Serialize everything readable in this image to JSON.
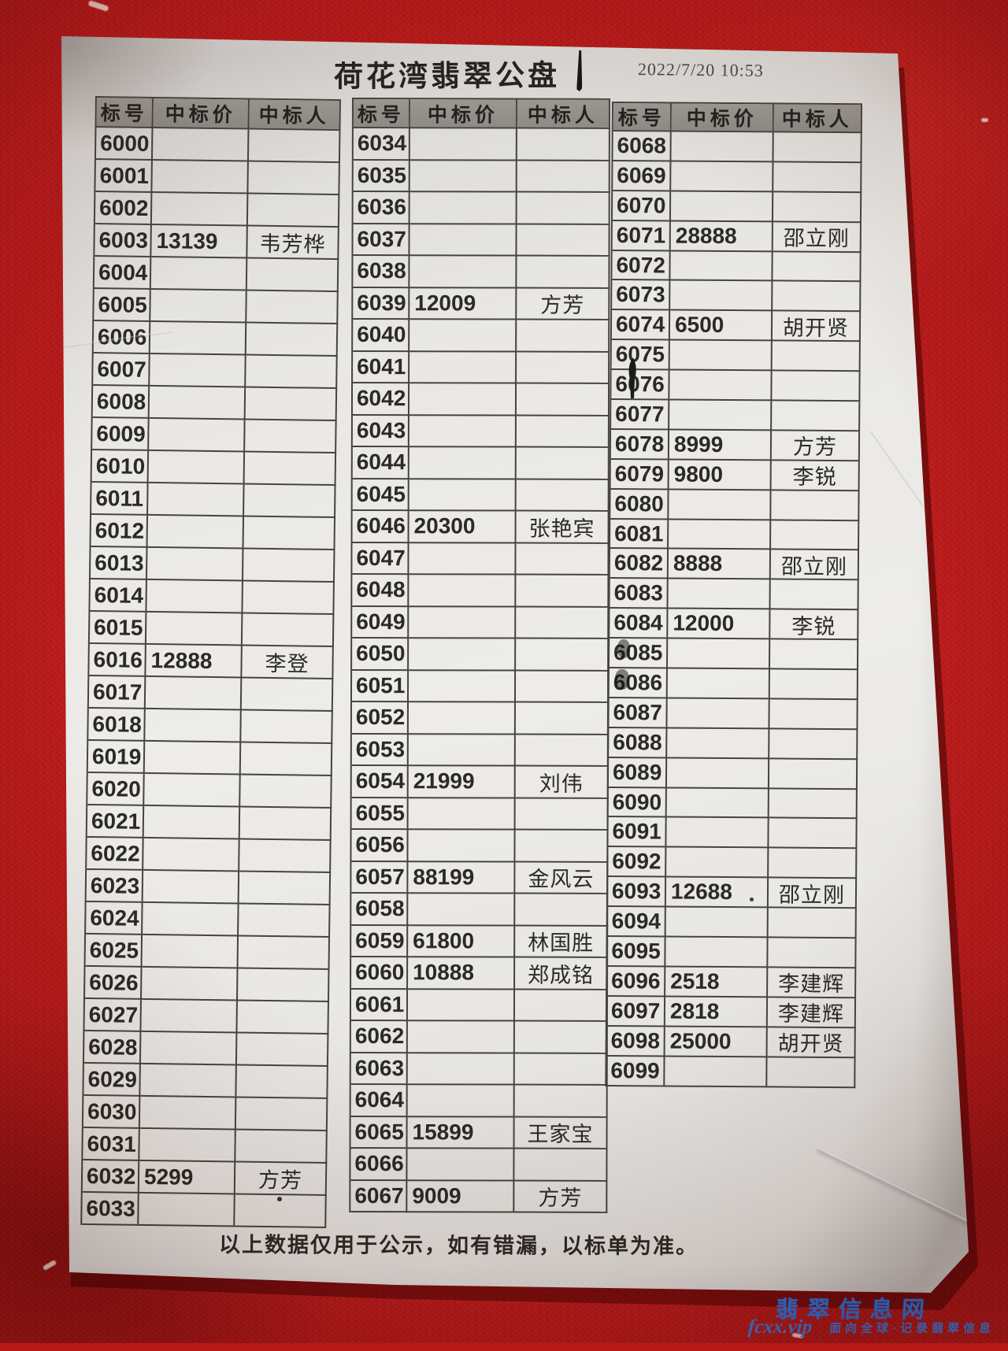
{
  "page": {
    "title": "荷花湾翡翠公盘",
    "datetime": "2022/7/20 10:53",
    "footer_note": "以上数据仅用于公示，如有错漏，以标单为准。"
  },
  "watermark": {
    "site_name": "翡翠信息网",
    "site_url": "fcxx.vip",
    "tagline": "面向全球·记录翡翠信息"
  },
  "table_headers": [
    "标号",
    "中标价",
    "中标人"
  ],
  "tables": [
    {
      "name": "lots-6000-6033",
      "rows": [
        [
          "6000",
          "",
          ""
        ],
        [
          "6001",
          "",
          ""
        ],
        [
          "6002",
          "",
          ""
        ],
        [
          "6003",
          "13139",
          "韦芳桦"
        ],
        [
          "6004",
          "",
          ""
        ],
        [
          "6005",
          "",
          ""
        ],
        [
          "6006",
          "",
          ""
        ],
        [
          "6007",
          "",
          ""
        ],
        [
          "6008",
          "",
          ""
        ],
        [
          "6009",
          "",
          ""
        ],
        [
          "6010",
          "",
          ""
        ],
        [
          "6011",
          "",
          ""
        ],
        [
          "6012",
          "",
          ""
        ],
        [
          "6013",
          "",
          ""
        ],
        [
          "6014",
          "",
          ""
        ],
        [
          "6015",
          "",
          ""
        ],
        [
          "6016",
          "12888",
          "李登"
        ],
        [
          "6017",
          "",
          ""
        ],
        [
          "6018",
          "",
          ""
        ],
        [
          "6019",
          "",
          ""
        ],
        [
          "6020",
          "",
          ""
        ],
        [
          "6021",
          "",
          ""
        ],
        [
          "6022",
          "",
          ""
        ],
        [
          "6023",
          "",
          ""
        ],
        [
          "6024",
          "",
          ""
        ],
        [
          "6025",
          "",
          ""
        ],
        [
          "6026",
          "",
          ""
        ],
        [
          "6027",
          "",
          ""
        ],
        [
          "6028",
          "",
          ""
        ],
        [
          "6029",
          "",
          ""
        ],
        [
          "6030",
          "",
          ""
        ],
        [
          "6031",
          "",
          ""
        ],
        [
          "6032",
          "5299",
          "方芳"
        ],
        [
          "6033",
          "",
          ""
        ]
      ]
    },
    {
      "name": "lots-6034-6067",
      "rows": [
        [
          "6034",
          "",
          ""
        ],
        [
          "6035",
          "",
          ""
        ],
        [
          "6036",
          "",
          ""
        ],
        [
          "6037",
          "",
          ""
        ],
        [
          "6038",
          "",
          ""
        ],
        [
          "6039",
          "12009",
          "方芳"
        ],
        [
          "6040",
          "",
          ""
        ],
        [
          "6041",
          "",
          ""
        ],
        [
          "6042",
          "",
          ""
        ],
        [
          "6043",
          "",
          ""
        ],
        [
          "6044",
          "",
          ""
        ],
        [
          "6045",
          "",
          ""
        ],
        [
          "6046",
          "20300",
          "张艳宾"
        ],
        [
          "6047",
          "",
          ""
        ],
        [
          "6048",
          "",
          ""
        ],
        [
          "6049",
          "",
          ""
        ],
        [
          "6050",
          "",
          ""
        ],
        [
          "6051",
          "",
          ""
        ],
        [
          "6052",
          "",
          ""
        ],
        [
          "6053",
          "",
          ""
        ],
        [
          "6054",
          "21999",
          "刘伟"
        ],
        [
          "6055",
          "",
          ""
        ],
        [
          "6056",
          "",
          ""
        ],
        [
          "6057",
          "88199",
          "金风云"
        ],
        [
          "6058",
          "",
          ""
        ],
        [
          "6059",
          "61800",
          "林国胜"
        ],
        [
          "6060",
          "10888",
          "郑成铭"
        ],
        [
          "6061",
          "",
          ""
        ],
        [
          "6062",
          "",
          ""
        ],
        [
          "6063",
          "",
          ""
        ],
        [
          "6064",
          "",
          ""
        ],
        [
          "6065",
          "15899",
          "王家宝"
        ],
        [
          "6066",
          "",
          ""
        ],
        [
          "6067",
          "9009",
          "方芳"
        ]
      ]
    },
    {
      "name": "lots-6068-6099",
      "rows": [
        [
          "6068",
          "",
          ""
        ],
        [
          "6069",
          "",
          ""
        ],
        [
          "6070",
          "",
          ""
        ],
        [
          "6071",
          "28888",
          "邵立刚"
        ],
        [
          "6072",
          "",
          ""
        ],
        [
          "6073",
          "",
          ""
        ],
        [
          "6074",
          "6500",
          "胡开贤"
        ],
        [
          "6075",
          "",
          ""
        ],
        [
          "6076",
          "",
          ""
        ],
        [
          "6077",
          "",
          ""
        ],
        [
          "6078",
          "8999",
          "方芳"
        ],
        [
          "6079",
          "9800",
          "李锐"
        ],
        [
          "6080",
          "",
          ""
        ],
        [
          "6081",
          "",
          ""
        ],
        [
          "6082",
          "8888",
          "邵立刚"
        ],
        [
          "6083",
          "",
          ""
        ],
        [
          "6084",
          "12000",
          "李锐"
        ],
        [
          "6085",
          "",
          ""
        ],
        [
          "6086",
          "",
          ""
        ],
        [
          "6087",
          "",
          ""
        ],
        [
          "6088",
          "",
          ""
        ],
        [
          "6089",
          "",
          ""
        ],
        [
          "6090",
          "",
          ""
        ],
        [
          "6091",
          "",
          ""
        ],
        [
          "6092",
          "",
          ""
        ],
        [
          "6093",
          "12688",
          "邵立刚"
        ],
        [
          "6094",
          "",
          ""
        ],
        [
          "6095",
          "",
          ""
        ],
        [
          "6096",
          "2518",
          "李建辉"
        ],
        [
          "6097",
          "2818",
          "李建辉"
        ],
        [
          "6098",
          "25000",
          "胡开贤"
        ],
        [
          "6099",
          "",
          ""
        ]
      ]
    }
  ],
  "colors": {
    "carpet_red": "#bb1a1a",
    "paper": "#e9e8e4",
    "header_gray": "#93918b",
    "ink": "#2b2a26",
    "watermark_blue": "#2f72d8"
  }
}
